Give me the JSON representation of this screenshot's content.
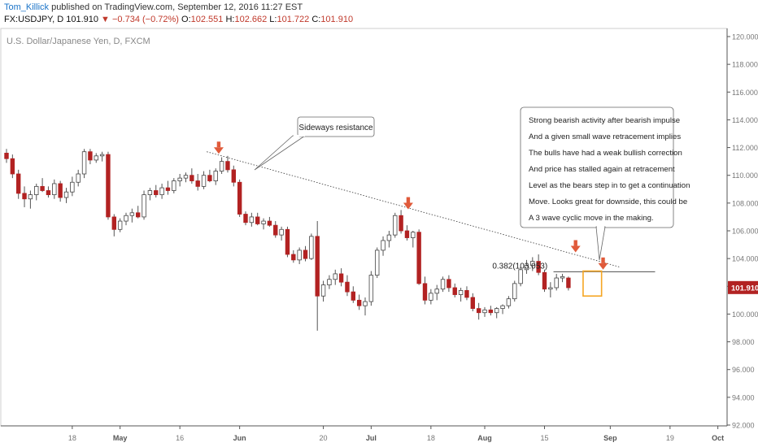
{
  "header": {
    "author": "Tom_Killick",
    "published_text": " published on TradingView.com, September 12, 2016 11:27 EST",
    "symbol": "FX:USDJPY, D",
    "last": "101.910",
    "change": "−0.734 (−0.72%)",
    "o_label": "O:",
    "o": "102.551",
    "h_label": "H:",
    "h": "102.662",
    "l_label": "L:",
    "l": "101.722",
    "c_label": "C:",
    "c": "101.910"
  },
  "chart_data": {
    "type": "candlestick",
    "title": "U.S. Dollar/Japanese Yen, D, FXCM",
    "ylim": [
      92,
      120
    ],
    "y_ticks": [
      "120.000",
      "118.000",
      "116.000",
      "114.000",
      "112.000",
      "110.000",
      "108.000",
      "106.000",
      "104.000",
      "102.000",
      "100.000",
      "98.000",
      "96.000",
      "94.000",
      "92.000"
    ],
    "x_ticks": [
      {
        "label": "18",
        "index": 11
      },
      {
        "label": "May",
        "index": 19
      },
      {
        "label": "16",
        "index": 29
      },
      {
        "label": "Jun",
        "index": 39
      },
      {
        "label": "20",
        "index": 53
      },
      {
        "label": "Jul",
        "index": 61
      },
      {
        "label": "18",
        "index": 71
      },
      {
        "label": "Aug",
        "index": 80
      },
      {
        "label": "15",
        "index": 90
      },
      {
        "label": "Sep",
        "index": 101
      },
      {
        "label": "19",
        "index": 111
      },
      {
        "label": "Oct",
        "index": 119
      }
    ],
    "last_price": "101.910",
    "colors": {
      "up": "#ffffff",
      "down": "#b22222",
      "wick": "#555555",
      "price_label_bg": "#b22222",
      "arrow": "#e05a3a",
      "highlight": "#f5a623"
    },
    "candles": [
      {
        "o": 111.6,
        "h": 111.9,
        "l": 110.9,
        "c": 111.2
      },
      {
        "o": 111.2,
        "h": 111.5,
        "l": 109.8,
        "c": 110.1
      },
      {
        "o": 110.1,
        "h": 110.4,
        "l": 108.3,
        "c": 108.7
      },
      {
        "o": 108.7,
        "h": 109.2,
        "l": 107.7,
        "c": 108.3
      },
      {
        "o": 108.3,
        "h": 108.9,
        "l": 107.6,
        "c": 108.6
      },
      {
        "o": 108.6,
        "h": 109.4,
        "l": 108.2,
        "c": 109.2
      },
      {
        "o": 109.2,
        "h": 109.8,
        "l": 108.8,
        "c": 108.9
      },
      {
        "o": 108.9,
        "h": 109.2,
        "l": 108.4,
        "c": 108.6
      },
      {
        "o": 108.6,
        "h": 109.7,
        "l": 108.3,
        "c": 109.4
      },
      {
        "o": 109.4,
        "h": 109.6,
        "l": 108.1,
        "c": 108.4
      },
      {
        "o": 108.4,
        "h": 109.1,
        "l": 108.0,
        "c": 108.8
      },
      {
        "o": 108.8,
        "h": 109.9,
        "l": 108.5,
        "c": 109.5
      },
      {
        "o": 109.5,
        "h": 110.4,
        "l": 109.2,
        "c": 110.1
      },
      {
        "o": 110.1,
        "h": 111.9,
        "l": 109.8,
        "c": 111.7
      },
      {
        "o": 111.7,
        "h": 111.9,
        "l": 110.8,
        "c": 111.1
      },
      {
        "o": 111.1,
        "h": 111.6,
        "l": 110.9,
        "c": 111.4
      },
      {
        "o": 111.4,
        "h": 111.7,
        "l": 111.0,
        "c": 111.5
      },
      {
        "o": 111.5,
        "h": 111.7,
        "l": 106.8,
        "c": 107.0
      },
      {
        "o": 107.0,
        "h": 107.2,
        "l": 105.6,
        "c": 106.1
      },
      {
        "o": 106.1,
        "h": 106.9,
        "l": 105.9,
        "c": 106.7
      },
      {
        "o": 106.7,
        "h": 107.3,
        "l": 106.4,
        "c": 107.1
      },
      {
        "o": 107.1,
        "h": 107.6,
        "l": 106.6,
        "c": 107.3
      },
      {
        "o": 107.3,
        "h": 107.8,
        "l": 106.9,
        "c": 107.0
      },
      {
        "o": 107.0,
        "h": 108.9,
        "l": 106.8,
        "c": 108.6
      },
      {
        "o": 108.6,
        "h": 109.1,
        "l": 108.2,
        "c": 108.9
      },
      {
        "o": 108.9,
        "h": 109.3,
        "l": 108.4,
        "c": 108.6
      },
      {
        "o": 108.6,
        "h": 109.4,
        "l": 108.3,
        "c": 109.1
      },
      {
        "o": 109.1,
        "h": 109.6,
        "l": 108.6,
        "c": 108.9
      },
      {
        "o": 108.9,
        "h": 109.8,
        "l": 108.7,
        "c": 109.6
      },
      {
        "o": 109.6,
        "h": 110.1,
        "l": 109.2,
        "c": 109.8
      },
      {
        "o": 109.8,
        "h": 110.2,
        "l": 109.5,
        "c": 110.0
      },
      {
        "o": 110.0,
        "h": 110.5,
        "l": 109.4,
        "c": 109.6
      },
      {
        "o": 109.6,
        "h": 110.1,
        "l": 108.9,
        "c": 109.2
      },
      {
        "o": 109.2,
        "h": 110.3,
        "l": 109.0,
        "c": 110.0
      },
      {
        "o": 110.0,
        "h": 110.4,
        "l": 109.5,
        "c": 109.6
      },
      {
        "o": 109.6,
        "h": 110.5,
        "l": 109.3,
        "c": 110.3
      },
      {
        "o": 110.3,
        "h": 111.3,
        "l": 110.1,
        "c": 111.0
      },
      {
        "o": 111.0,
        "h": 111.4,
        "l": 110.2,
        "c": 110.4
      },
      {
        "o": 110.4,
        "h": 110.7,
        "l": 109.2,
        "c": 109.5
      },
      {
        "o": 109.5,
        "h": 109.7,
        "l": 107.0,
        "c": 107.2
      },
      {
        "o": 107.2,
        "h": 107.4,
        "l": 106.4,
        "c": 106.6
      },
      {
        "o": 106.6,
        "h": 107.3,
        "l": 106.3,
        "c": 107.0
      },
      {
        "o": 107.0,
        "h": 107.3,
        "l": 106.4,
        "c": 106.5
      },
      {
        "o": 106.5,
        "h": 106.9,
        "l": 106.1,
        "c": 106.7
      },
      {
        "o": 106.7,
        "h": 107.0,
        "l": 106.3,
        "c": 106.4
      },
      {
        "o": 106.4,
        "h": 106.7,
        "l": 105.5,
        "c": 105.7
      },
      {
        "o": 105.7,
        "h": 106.3,
        "l": 105.3,
        "c": 106.1
      },
      {
        "o": 106.1,
        "h": 106.3,
        "l": 104.1,
        "c": 104.3
      },
      {
        "o": 104.3,
        "h": 104.6,
        "l": 103.7,
        "c": 103.9
      },
      {
        "o": 103.9,
        "h": 104.8,
        "l": 103.6,
        "c": 104.6
      },
      {
        "o": 104.6,
        "h": 104.9,
        "l": 103.8,
        "c": 104.0
      },
      {
        "o": 104.0,
        "h": 105.8,
        "l": 103.9,
        "c": 105.6
      },
      {
        "o": 105.6,
        "h": 106.7,
        "l": 98.8,
        "c": 101.3
      },
      {
        "o": 101.3,
        "h": 102.4,
        "l": 100.9,
        "c": 102.1
      },
      {
        "o": 102.1,
        "h": 102.8,
        "l": 101.8,
        "c": 102.5
      },
      {
        "o": 102.5,
        "h": 103.2,
        "l": 102.1,
        "c": 102.9
      },
      {
        "o": 102.9,
        "h": 103.3,
        "l": 102.0,
        "c": 102.3
      },
      {
        "o": 102.3,
        "h": 102.8,
        "l": 101.3,
        "c": 101.6
      },
      {
        "o": 101.6,
        "h": 102.0,
        "l": 100.8,
        "c": 101.0
      },
      {
        "o": 101.0,
        "h": 101.4,
        "l": 100.3,
        "c": 100.6
      },
      {
        "o": 100.6,
        "h": 101.2,
        "l": 99.9,
        "c": 100.9
      },
      {
        "o": 100.9,
        "h": 103.1,
        "l": 100.6,
        "c": 102.8
      },
      {
        "o": 102.8,
        "h": 104.8,
        "l": 102.6,
        "c": 104.6
      },
      {
        "o": 104.6,
        "h": 105.6,
        "l": 104.2,
        "c": 105.3
      },
      {
        "o": 105.3,
        "h": 106.0,
        "l": 104.8,
        "c": 105.7
      },
      {
        "o": 105.7,
        "h": 107.3,
        "l": 105.5,
        "c": 107.1
      },
      {
        "o": 107.1,
        "h": 107.5,
        "l": 105.8,
        "c": 106.0
      },
      {
        "o": 106.0,
        "h": 106.4,
        "l": 105.3,
        "c": 105.5
      },
      {
        "o": 105.5,
        "h": 106.0,
        "l": 104.8,
        "c": 105.9
      },
      {
        "o": 105.9,
        "h": 106.1,
        "l": 102.1,
        "c": 102.2
      },
      {
        "o": 102.2,
        "h": 102.7,
        "l": 100.7,
        "c": 101.0
      },
      {
        "o": 101.0,
        "h": 101.8,
        "l": 100.7,
        "c": 101.5
      },
      {
        "o": 101.5,
        "h": 102.1,
        "l": 101.0,
        "c": 101.8
      },
      {
        "o": 101.8,
        "h": 102.7,
        "l": 101.6,
        "c": 102.5
      },
      {
        "o": 102.5,
        "h": 102.8,
        "l": 101.6,
        "c": 101.9
      },
      {
        "o": 101.9,
        "h": 102.2,
        "l": 101.2,
        "c": 101.4
      },
      {
        "o": 101.4,
        "h": 101.9,
        "l": 100.9,
        "c": 101.7
      },
      {
        "o": 101.7,
        "h": 102.0,
        "l": 101.0,
        "c": 101.2
      },
      {
        "o": 101.2,
        "h": 101.5,
        "l": 100.2,
        "c": 100.4
      },
      {
        "o": 100.4,
        "h": 100.8,
        "l": 99.6,
        "c": 100.1
      },
      {
        "o": 100.1,
        "h": 100.5,
        "l": 99.8,
        "c": 100.3
      },
      {
        "o": 100.3,
        "h": 100.6,
        "l": 99.9,
        "c": 100.1
      },
      {
        "o": 100.1,
        "h": 100.5,
        "l": 99.7,
        "c": 100.4
      },
      {
        "o": 100.4,
        "h": 100.7,
        "l": 100.0,
        "c": 100.6
      },
      {
        "o": 100.6,
        "h": 101.3,
        "l": 100.4,
        "c": 101.1
      },
      {
        "o": 101.1,
        "h": 102.4,
        "l": 100.9,
        "c": 102.2
      },
      {
        "o": 102.2,
        "h": 103.4,
        "l": 102.0,
        "c": 103.2
      },
      {
        "o": 103.2,
        "h": 103.9,
        "l": 102.9,
        "c": 103.5
      },
      {
        "o": 103.5,
        "h": 104.1,
        "l": 103.1,
        "c": 103.8
      },
      {
        "o": 103.8,
        "h": 104.3,
        "l": 102.8,
        "c": 103.0
      },
      {
        "o": 103.0,
        "h": 103.2,
        "l": 101.6,
        "c": 101.8
      },
      {
        "o": 101.8,
        "h": 102.3,
        "l": 101.2,
        "c": 101.9
      },
      {
        "o": 101.9,
        "h": 102.9,
        "l": 101.7,
        "c": 102.6
      },
      {
        "o": 102.6,
        "h": 102.9,
        "l": 102.3,
        "c": 102.7
      },
      {
        "o": 102.6,
        "h": 102.7,
        "l": 101.7,
        "c": 101.9
      }
    ],
    "fib_label": "0.382(103.053)",
    "annotations": {
      "sideways": "Sideways resistance",
      "commentary": [
        "Strong bearish activity after bearish impulse",
        "And a given small wave retracement implies",
        "The bulls have had a weak bullish correction",
        "And price has stalled again at retracement",
        "Level as the bears step in to get a continuation",
        "Move. Looks great for downside, this could be",
        "A 3 wave cyclic move in the making."
      ]
    }
  }
}
